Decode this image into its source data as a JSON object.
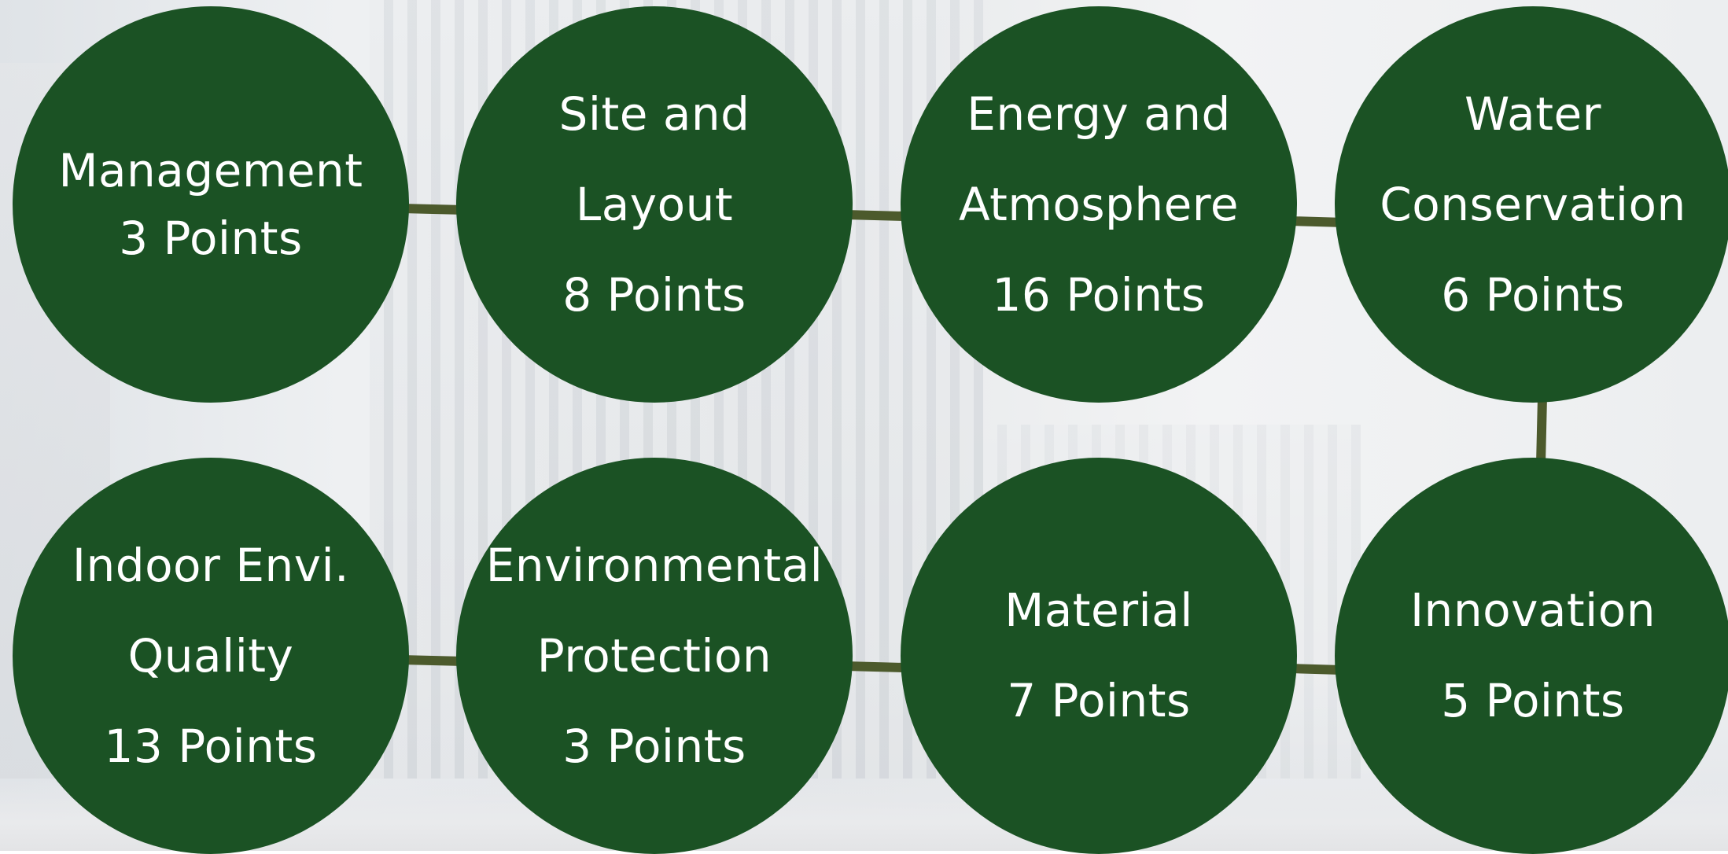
{
  "colors": {
    "circle_fill": "#1b5224",
    "connector": "#4c5a2c",
    "text": "#ffffff"
  },
  "nodes": [
    {
      "id": "management",
      "lines": [
        "Management",
        "3 Points"
      ]
    },
    {
      "id": "site-and-layout",
      "lines": [
        "Site and",
        "Layout",
        "8 Points"
      ]
    },
    {
      "id": "energy-and-atmosphere",
      "lines": [
        "Energy and",
        "Atmosphere",
        "16 Points"
      ]
    },
    {
      "id": "water-conservation",
      "lines": [
        "Water",
        "Conservation",
        "6 Points"
      ]
    },
    {
      "id": "indoor-envi-quality",
      "lines": [
        "Indoor Envi.",
        "Quality",
        "13 Points"
      ]
    },
    {
      "id": "environmental-protection",
      "lines": [
        "Environmental",
        "Protection",
        "3 Points"
      ]
    },
    {
      "id": "material",
      "lines": [
        "Material",
        "7 Points"
      ]
    },
    {
      "id": "innovation",
      "lines": [
        "Innovation",
        "5 Points"
      ]
    }
  ]
}
